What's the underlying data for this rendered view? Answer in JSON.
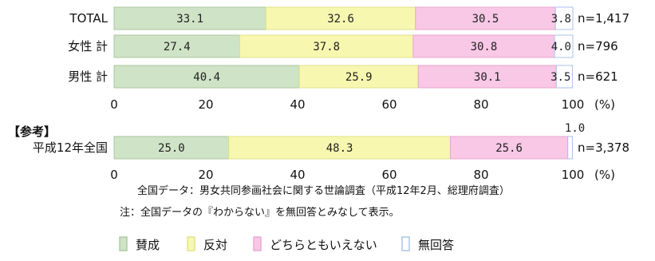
{
  "colors": {
    "agree": "#cfe3c6",
    "oppose": "#f7f7b0",
    "neutral": "#f8c8e6",
    "no_answer": "#ffffff",
    "no_answer_border": "#a8c0e8"
  },
  "chart_data": [
    {
      "type": "bar",
      "orientation": "horizontal",
      "stacked": true,
      "categories": [
        "TOTAL",
        "女性 計",
        "男性 計"
      ],
      "n_labels": [
        "n=1,417",
        "n=796",
        "n=621"
      ],
      "series": [
        {
          "name": "賛成",
          "values": [
            33.1,
            27.4,
            40.4
          ]
        },
        {
          "name": "反対",
          "values": [
            32.6,
            37.8,
            25.9
          ]
        },
        {
          "name": "どちらともいえない",
          "values": [
            30.5,
            30.8,
            30.1
          ]
        },
        {
          "name": "無回答",
          "values": [
            3.8,
            4.0,
            3.5
          ]
        }
      ],
      "xlim": [
        0,
        100
      ],
      "xticks": [
        "0",
        "20",
        "40",
        "60",
        "80",
        "100"
      ],
      "unit": "(%)"
    },
    {
      "type": "bar",
      "orientation": "horizontal",
      "stacked": true,
      "section_title": "【参考】",
      "categories": [
        "平成12年全国"
      ],
      "n_labels": [
        "n=3,378"
      ],
      "series": [
        {
          "name": "賛成",
          "values": [
            25.0
          ]
        },
        {
          "name": "反対",
          "values": [
            48.3
          ]
        },
        {
          "name": "どちらともいえない",
          "values": [
            25.6
          ]
        },
        {
          "name": "無回答",
          "values": [
            1.0
          ]
        }
      ],
      "xlim": [
        0,
        100
      ],
      "xticks": [
        "0",
        "20",
        "40",
        "60",
        "80",
        "100"
      ],
      "unit": "(%)"
    }
  ],
  "notes": [
    "全国データ：男女共同参画社会に関する世論調査（平成12年2月、総理府調査）",
    "注：全国データの『わからない』を無回答とみなして表示。"
  ],
  "legend": [
    "賛成",
    "反対",
    "どちらともいえない",
    "無回答"
  ]
}
